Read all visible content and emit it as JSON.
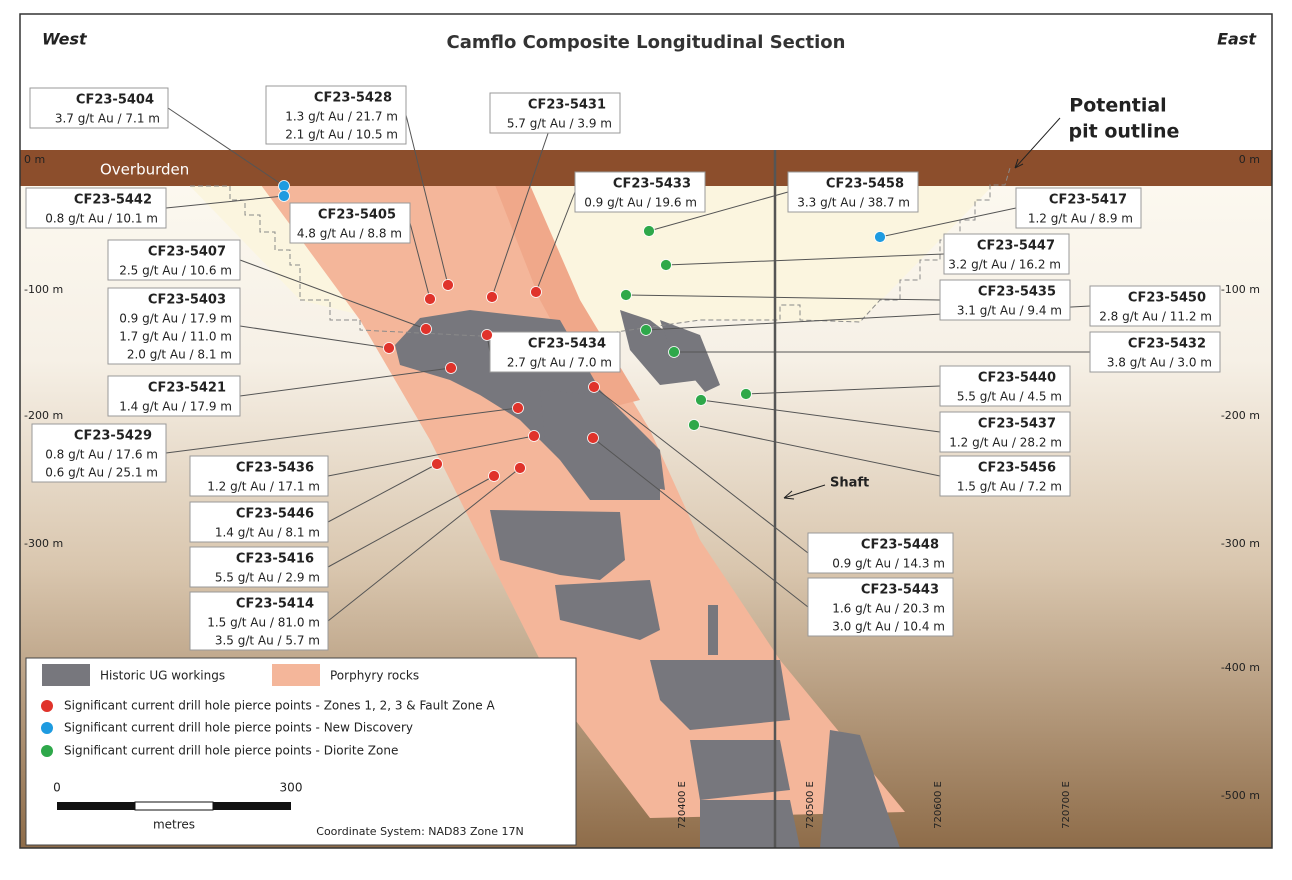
{
  "header": {
    "title": "Camflo Composite Longitudinal Section",
    "west": "West",
    "east": "East"
  },
  "labels": {
    "overburden": "Overburden",
    "pit_outline": [
      "Potential",
      "pit outline"
    ],
    "shaft": "Shaft"
  },
  "depth_labels": [
    "0 m",
    "-100 m",
    "-200 m",
    "-300 m",
    "-400 m",
    "-500 m"
  ],
  "easting_labels": [
    "720400 E",
    "720500 E",
    "720600 E",
    "720700 E"
  ],
  "callouts": [
    {
      "id": "CF23-5404",
      "lines": [
        "3.7 g/t Au / 7.1 m"
      ]
    },
    {
      "id": "CF23-5428",
      "lines": [
        "1.3 g/t Au / 21.7 m",
        "2.1 g/t Au / 10.5 m"
      ]
    },
    {
      "id": "CF23-5431",
      "lines": [
        "5.7 g/t Au / 3.9 m"
      ]
    },
    {
      "id": "CF23-5442",
      "lines": [
        "0.8 g/t Au / 10.1 m"
      ]
    },
    {
      "id": "CF23-5405",
      "lines": [
        "4.8 g/t Au / 8.8 m"
      ]
    },
    {
      "id": "CF23-5433",
      "lines": [
        "0.9 g/t Au / 19.6 m"
      ]
    },
    {
      "id": "CF23-5458",
      "lines": [
        "3.3 g/t Au / 38.7 m"
      ]
    },
    {
      "id": "CF23-5417",
      "lines": [
        "1.2 g/t Au / 8.9 m"
      ]
    },
    {
      "id": "CF23-5407",
      "lines": [
        "2.5 g/t Au / 10.6 m"
      ]
    },
    {
      "id": "CF23-5447",
      "lines": [
        "3.2 g/t Au / 16.2 m"
      ]
    },
    {
      "id": "CF23-5403",
      "lines": [
        "0.9 g/t Au / 17.9 m",
        "1.7 g/t Au / 11.0 m",
        "2.0 g/t Au / 8.1 m"
      ]
    },
    {
      "id": "CF23-5435",
      "lines": [
        "3.1 g/t Au / 9.4 m"
      ]
    },
    {
      "id": "CF23-5450",
      "lines": [
        "2.8 g/t Au / 11.2 m"
      ]
    },
    {
      "id": "CF23-5434",
      "lines": [
        "2.7 g/t Au / 7.0 m"
      ]
    },
    {
      "id": "CF23-5432",
      "lines": [
        "3.8 g/t Au / 3.0 m"
      ]
    },
    {
      "id": "CF23-5421",
      "lines": [
        "1.4 g/t Au / 17.9 m"
      ]
    },
    {
      "id": "CF23-5440",
      "lines": [
        "5.5 g/t Au / 4.5 m"
      ]
    },
    {
      "id": "CF23-5429",
      "lines": [
        "0.8 g/t Au / 17.6 m",
        "0.6 g/t Au / 25.1 m"
      ]
    },
    {
      "id": "CF23-5437",
      "lines": [
        "1.2 g/t Au / 28.2 m"
      ]
    },
    {
      "id": "CF23-5436",
      "lines": [
        "1.2 g/t Au / 17.1 m"
      ]
    },
    {
      "id": "CF23-5456",
      "lines": [
        "1.5 g/t Au / 7.2 m"
      ]
    },
    {
      "id": "CF23-5446",
      "lines": [
        "1.4 g/t Au / 8.1 m"
      ]
    },
    {
      "id": "CF23-5416",
      "lines": [
        "5.5 g/t Au / 2.9 m"
      ]
    },
    {
      "id": "CF23-5414",
      "lines": [
        "1.5 g/t Au / 81.0 m",
        "3.5 g/t Au / 5.7 m"
      ]
    },
    {
      "id": "CF23-5448",
      "lines": [
        "0.9 g/t Au / 14.3 m"
      ]
    },
    {
      "id": "CF23-5443",
      "lines": [
        "1.6 g/t Au / 20.3 m",
        "3.0 g/t Au / 10.4 m"
      ]
    }
  ],
  "legend": {
    "items": [
      "Historic UG workings",
      "Porphyry rocks",
      "Significant current drill hole pierce points - Zones 1, 2, 3 & Fault Zone A",
      "Significant current drill hole pierce points - New Discovery",
      "Significant current drill hole pierce points - Diorite Zone"
    ]
  },
  "scale_bar": {
    "start": "0",
    "end": "300",
    "unit": "metres"
  },
  "coordinate_system": "Coordinate System: NAD83 Zone 17N"
}
